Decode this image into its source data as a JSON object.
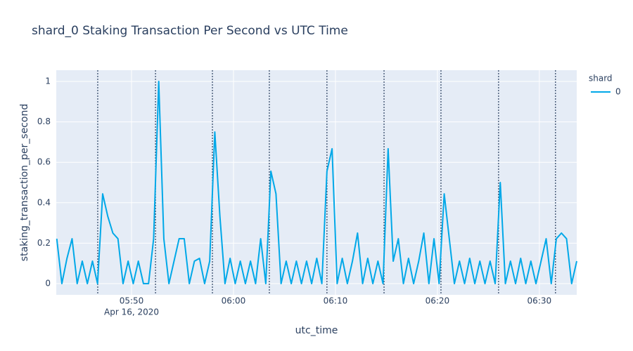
{
  "chart_data": {
    "type": "line",
    "title": "shard_0 Staking Transaction Per Second vs UTC Time",
    "x_label": "utc_time",
    "y_label": "staking_transaction_per_second",
    "x_date": "Apr 16, 2020",
    "legend_title": "shard",
    "legend_position": "right",
    "grid": true,
    "x": [
      "2020-04-16 05:42:40",
      "2020-04-16 05:43:10",
      "2020-04-16 05:43:40",
      "2020-04-16 05:44:10",
      "2020-04-16 05:44:40",
      "2020-04-16 05:45:10",
      "2020-04-16 05:45:40",
      "2020-04-16 05:46:10",
      "2020-04-16 05:46:40",
      "2020-04-16 05:47:10",
      "2020-04-16 05:47:40",
      "2020-04-16 05:48:10",
      "2020-04-16 05:48:40",
      "2020-04-16 05:49:10",
      "2020-04-16 05:49:40",
      "2020-04-16 05:50:10",
      "2020-04-16 05:50:40",
      "2020-04-16 05:51:10",
      "2020-04-16 05:51:40",
      "2020-04-16 05:52:10",
      "2020-04-16 05:52:40",
      "2020-04-16 05:53:10",
      "2020-04-16 05:53:40",
      "2020-04-16 05:54:10",
      "2020-04-16 05:54:40",
      "2020-04-16 05:55:10",
      "2020-04-16 05:55:40",
      "2020-04-16 05:56:10",
      "2020-04-16 05:56:40",
      "2020-04-16 05:57:10",
      "2020-04-16 05:57:40",
      "2020-04-16 05:58:10",
      "2020-04-16 05:58:40",
      "2020-04-16 05:59:10",
      "2020-04-16 05:59:40",
      "2020-04-16 06:00:10",
      "2020-04-16 06:00:40",
      "2020-04-16 06:01:10",
      "2020-04-16 06:01:40",
      "2020-04-16 06:02:10",
      "2020-04-16 06:02:40",
      "2020-04-16 06:03:10",
      "2020-04-16 06:03:40",
      "2020-04-16 06:04:10",
      "2020-04-16 06:04:40",
      "2020-04-16 06:05:10",
      "2020-04-16 06:05:40",
      "2020-04-16 06:06:10",
      "2020-04-16 06:06:40",
      "2020-04-16 06:07:10",
      "2020-04-16 06:07:40",
      "2020-04-16 06:08:10",
      "2020-04-16 06:08:40",
      "2020-04-16 06:09:10",
      "2020-04-16 06:09:40",
      "2020-04-16 06:10:10",
      "2020-04-16 06:10:40",
      "2020-04-16 06:11:10",
      "2020-04-16 06:11:40",
      "2020-04-16 06:12:10",
      "2020-04-16 06:12:40",
      "2020-04-16 06:13:10",
      "2020-04-16 06:13:40",
      "2020-04-16 06:14:10",
      "2020-04-16 06:14:40",
      "2020-04-16 06:15:10",
      "2020-04-16 06:15:40",
      "2020-04-16 06:16:10",
      "2020-04-16 06:16:40",
      "2020-04-16 06:17:10",
      "2020-04-16 06:17:40",
      "2020-04-16 06:18:10",
      "2020-04-16 06:18:40",
      "2020-04-16 06:19:10",
      "2020-04-16 06:19:40",
      "2020-04-16 06:20:10",
      "2020-04-16 06:20:40",
      "2020-04-16 06:21:10",
      "2020-04-16 06:21:40",
      "2020-04-16 06:22:10",
      "2020-04-16 06:22:40",
      "2020-04-16 06:23:10",
      "2020-04-16 06:23:40",
      "2020-04-16 06:24:10",
      "2020-04-16 06:24:40",
      "2020-04-16 06:25:10",
      "2020-04-16 06:25:40",
      "2020-04-16 06:26:10",
      "2020-04-16 06:26:40",
      "2020-04-16 06:27:10",
      "2020-04-16 06:27:40",
      "2020-04-16 06:28:10",
      "2020-04-16 06:28:40",
      "2020-04-16 06:29:10",
      "2020-04-16 06:29:40",
      "2020-04-16 06:30:10",
      "2020-04-16 06:30:40",
      "2020-04-16 06:31:10",
      "2020-04-16 06:31:40",
      "2020-04-16 06:32:10",
      "2020-04-16 06:32:40",
      "2020-04-16 06:33:10",
      "2020-04-16 06:33:40"
    ],
    "series": [
      {
        "name": "0",
        "color": "#00a8e8",
        "values": [
          0.222,
          0,
          0.125,
          0.222,
          0,
          0.111,
          0,
          0.111,
          0,
          0.444,
          0.333,
          0.25,
          0.222,
          0,
          0.111,
          0,
          0.111,
          0,
          0,
          0.222,
          1,
          0.222,
          0,
          0.111,
          0.222,
          0.222,
          0,
          0.111,
          0.125,
          0,
          0.111,
          0.75,
          0.333,
          0,
          0.125,
          0,
          0.111,
          0,
          0.111,
          0,
          0.222,
          0,
          0.556,
          0.444,
          0,
          0.111,
          0,
          0.111,
          0,
          0.111,
          0,
          0.125,
          0,
          0.556,
          0.667,
          0,
          0.125,
          0,
          0.111,
          0.25,
          0,
          0.125,
          0,
          0.111,
          0,
          0.667,
          0.111,
          0.222,
          0,
          0.125,
          0,
          0.111,
          0.25,
          0,
          0.222,
          0,
          0.444,
          0.222,
          0,
          0.111,
          0,
          0.125,
          0,
          0.111,
          0,
          0.111,
          0,
          0.5,
          0,
          0.111,
          0,
          0.125,
          0,
          0.111,
          0,
          0.111,
          0.222,
          0,
          0.222,
          0.25,
          0.222,
          0,
          0.111
        ]
      }
    ],
    "vlines": [
      "2020-04-16 05:46:41",
      "2020-04-16 05:52:21",
      "2020-04-16 05:57:56",
      "2020-04-16 06:03:31",
      "2020-04-16 06:09:10",
      "2020-04-16 06:14:46",
      "2020-04-16 06:20:21",
      "2020-04-16 06:26:00",
      "2020-04-16 06:31:35"
    ],
    "vline_color": "#2a3f5f",
    "xlim": [
      "2020-04-16 05:42:37",
      "2020-04-16 06:33:40"
    ],
    "xticks": [
      {
        "value": "2020-04-16 05:50",
        "label": "05:50"
      },
      {
        "value": "2020-04-16 06:00",
        "label": "06:00"
      },
      {
        "value": "2020-04-16 06:10",
        "label": "06:10"
      },
      {
        "value": "2020-04-16 06:20",
        "label": "06:20"
      },
      {
        "value": "2020-04-16 06:30",
        "label": "06:30"
      }
    ],
    "ylim": [
      -0.0556,
      1.0556
    ],
    "yticks": [
      0,
      0.2,
      0.4,
      0.6,
      0.8,
      1
    ]
  }
}
